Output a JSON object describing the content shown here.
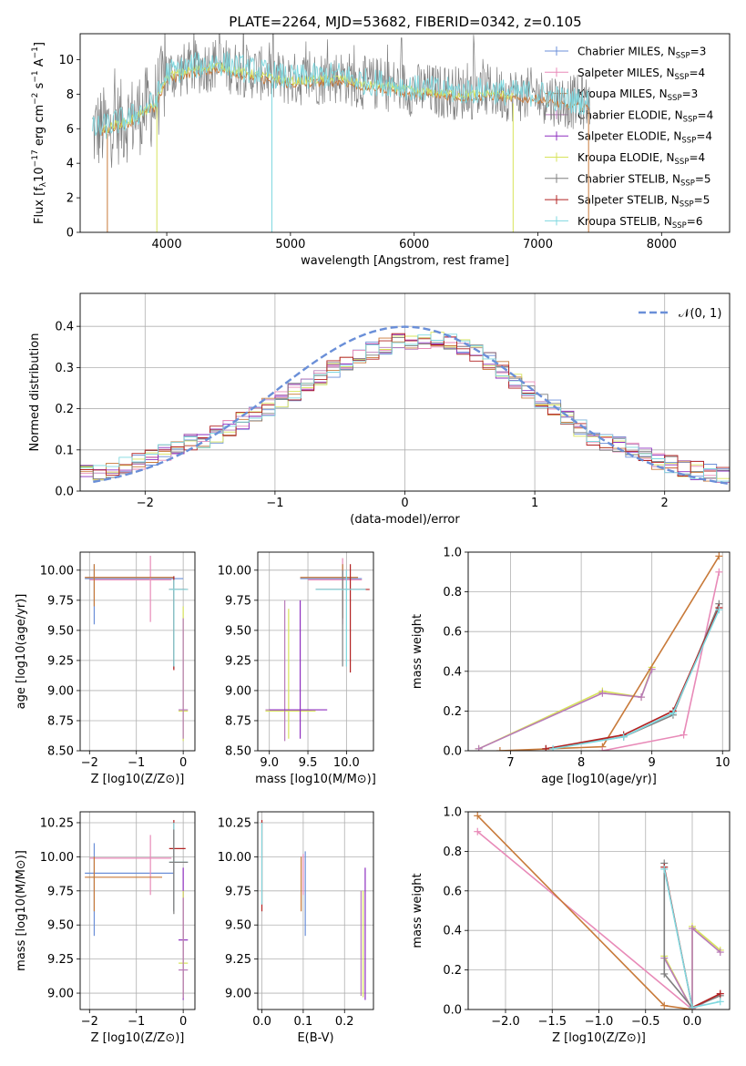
{
  "figure_title": "PLATE=2264, MJD=53682, FIBERID=0342, z=0.105",
  "colors": {
    "Chabrier MILES": "#6b8fd8",
    "Salpeter MILES": "#e88ab8",
    "Kroupa MILES": "#c87a3a",
    "Chabrier ELODIE": "#b87ab8",
    "Salpeter ELODIE": "#8e2fbf",
    "Kroupa ELODIE": "#d7e35a",
    "Chabrier STELIB": "#7f7f7f",
    "Salpeter STELIB": "#b22222",
    "Kroupa STELIB": "#7fd8df",
    "normal": "#6a8fd8"
  },
  "spectrum_legend": [
    "Chabrier MILES, N_SSP=3",
    "Salpeter MILES, N_SSP=4",
    "Kroupa MILES, N_SSP=3",
    "Chabrier ELODIE, N_SSP=4",
    "Salpeter ELODIE, N_SSP=4",
    "Kroupa ELODIE, N_SSP=4",
    "Chabrier STELIB, N_SSP=5",
    "Salpeter STELIB, N_SSP=5",
    "Kroupa STELIB, N_SSP=6"
  ],
  "chart_data": [
    {
      "id": "spectrum",
      "type": "line",
      "xlabel": "wavelength [Angstrom, rest frame]",
      "ylabel": "Flux [f_λ 10^-17 erg cm^-2 s^-1 A^-1]",
      "xlim": [
        3300,
        8550
      ],
      "ylim": [
        0,
        11.5
      ],
      "xticks": [
        4000,
        5000,
        6000,
        7000,
        8000
      ],
      "yticks": [
        0,
        2,
        4,
        6,
        8,
        10
      ],
      "continuum": {
        "x": [
          3400,
          3500,
          3600,
          3700,
          3800,
          3900,
          4000,
          4100,
          4200,
          4300,
          4400,
          4600,
          4800,
          5000,
          5200,
          5400,
          5600,
          5800,
          6000,
          6200,
          6400,
          6600,
          6800,
          7000,
          7200,
          7400
        ],
        "y": [
          6.1,
          6.3,
          6.6,
          6.8,
          7.3,
          7.7,
          9.5,
          9.7,
          9.9,
          10.0,
          10.2,
          9.8,
          9.5,
          9.2,
          9.3,
          9.4,
          9.0,
          8.9,
          8.6,
          8.5,
          8.4,
          8.5,
          8.3,
          8.3,
          7.9,
          7.8
        ]
      }
    },
    {
      "id": "residuals",
      "type": "line",
      "xlabel": "(data-model)/error",
      "ylabel": "Normed distribution",
      "xlim": [
        -2.5,
        2.5
      ],
      "ylim": [
        0,
        0.48
      ],
      "xticks": [
        -2,
        -1,
        0,
        1,
        2
      ],
      "yticks": [
        0.0,
        0.1,
        0.2,
        0.3,
        0.4
      ],
      "legend": "𝒩(0, 1)",
      "legend_position": "top-right",
      "grid": true
    },
    {
      "id": "age_vs_Z",
      "type": "scatter",
      "xlabel": "Z [log10(Z/Z⊙)]",
      "ylabel": "age  [log10(age/yr)]",
      "xlim": [
        -2.2,
        0.25
      ],
      "ylim": [
        8.5,
        10.15
      ],
      "xticks": [
        -2,
        -1,
        0
      ],
      "yticks": [
        8.5,
        8.75,
        9.0,
        9.25,
        9.5,
        9.75,
        10.0
      ],
      "points": [
        {
          "model": "Chabrier MILES",
          "x": -1.9,
          "xlo": -2.1,
          "xhi": 0.0,
          "y": 9.93,
          "ylo": 9.55,
          "yhi": 10.05
        },
        {
          "model": "Salpeter MILES",
          "x": -0.7,
          "xlo": -2.0,
          "xhi": -0.25,
          "y": 9.92,
          "ylo": 9.57,
          "yhi": 10.12
        },
        {
          "model": "Kroupa MILES",
          "x": -1.9,
          "xlo": -2.1,
          "xhi": -0.2,
          "y": 9.94,
          "ylo": 9.7,
          "yhi": 10.05
        },
        {
          "model": "Chabrier STELIB",
          "x": -0.2,
          "xlo": -0.3,
          "xhi": 0.05,
          "y": 9.84,
          "ylo": 9.18,
          "yhi": 9.95
        },
        {
          "model": "Salpeter STELIB",
          "x": -0.2,
          "xlo": -0.3,
          "xhi": 0.1,
          "y": 9.84,
          "ylo": 9.17,
          "yhi": 9.95
        },
        {
          "model": "Kroupa STELIB",
          "x": -0.2,
          "xlo": -0.3,
          "xhi": 0.1,
          "y": 9.84,
          "ylo": 9.2,
          "yhi": 9.92
        },
        {
          "model": "Kroupa ELODIE",
          "x": 0.0,
          "xlo": -0.1,
          "xhi": 0.1,
          "y": 8.83,
          "ylo": 8.58,
          "yhi": 9.7
        },
        {
          "model": "Chabrier ELODIE",
          "x": 0.0,
          "xlo": -0.1,
          "xhi": 0.1,
          "y": 8.84,
          "ylo": 8.6,
          "yhi": 9.6
        }
      ]
    },
    {
      "id": "age_vs_mass",
      "type": "scatter",
      "xlabel": "mass [log10(M/M⊙)]",
      "ylabel": "",
      "xlim": [
        8.85,
        10.35
      ],
      "ylim": [
        8.5,
        10.15
      ],
      "xticks": [
        9.0,
        9.5,
        10.0
      ],
      "yticks": [
        8.5,
        8.75,
        9.0,
        9.25,
        9.5,
        9.75,
        10.0
      ],
      "points": [
        {
          "model": "Chabrier MILES",
          "x": 9.95,
          "xlo": 9.4,
          "xhi": 10.2,
          "y": 9.93,
          "ylo": 9.6,
          "yhi": 10.05
        },
        {
          "model": "Salpeter MILES",
          "x": 9.95,
          "xlo": 9.5,
          "xhi": 10.2,
          "y": 9.92,
          "ylo": 9.55,
          "yhi": 10.1
        },
        {
          "model": "Kroupa MILES",
          "x": 9.95,
          "xlo": 9.4,
          "xhi": 10.15,
          "y": 9.94,
          "ylo": 9.6,
          "yhi": 10.05
        },
        {
          "model": "Chabrier STELIB",
          "x": 9.95,
          "xlo": 9.6,
          "xhi": 10.25,
          "y": 9.84,
          "ylo": 9.2,
          "yhi": 10.0
        },
        {
          "model": "Salpeter STELIB",
          "x": 10.05,
          "xlo": 9.6,
          "xhi": 10.3,
          "y": 9.84,
          "ylo": 9.15,
          "yhi": 10.05
        },
        {
          "model": "Kroupa STELIB",
          "x": 10.0,
          "xlo": 9.6,
          "xhi": 10.25,
          "y": 9.84,
          "ylo": 9.2,
          "yhi": 10.0
        },
        {
          "model": "Kroupa ELODIE",
          "x": 9.25,
          "xlo": 8.95,
          "xhi": 9.6,
          "y": 8.83,
          "ylo": 8.6,
          "yhi": 9.68
        },
        {
          "model": "Chabrier ELODIE",
          "x": 9.2,
          "xlo": 8.95,
          "xhi": 9.55,
          "y": 8.84,
          "ylo": 8.58,
          "yhi": 9.75
        },
        {
          "model": "Salpeter ELODIE",
          "x": 9.4,
          "xlo": 9.0,
          "xhi": 9.75,
          "y": 8.84,
          "ylo": 8.6,
          "yhi": 9.75
        }
      ]
    },
    {
      "id": "weight_vs_age",
      "type": "line",
      "xlabel": "age  [log10(age/yr)]",
      "ylabel": "mass weight",
      "xlim": [
        6.4,
        10.1
      ],
      "ylim": [
        0,
        1.0
      ],
      "xticks": [
        7,
        8,
        9,
        10
      ],
      "yticks": [
        0.0,
        0.2,
        0.4,
        0.6,
        0.8,
        1.0
      ],
      "grid": true,
      "series": [
        {
          "model": "Kroupa ELODIE",
          "x": [
            6.55,
            8.3,
            8.85,
            9.0
          ],
          "y": [
            0.01,
            0.3,
            0.27,
            0.42
          ]
        },
        {
          "model": "Chabrier ELODIE",
          "x": [
            6.55,
            8.3,
            8.85,
            9.0
          ],
          "y": [
            0.01,
            0.29,
            0.27,
            0.41
          ]
        },
        {
          "model": "Kroupa MILES",
          "x": [
            6.85,
            8.3,
            9.95
          ],
          "y": [
            0.0,
            0.02,
            0.98
          ]
        },
        {
          "model": "Salpeter MILES",
          "x": [
            8.3,
            9.45,
            9.95
          ],
          "y": [
            0.0,
            0.08,
            0.9
          ]
        },
        {
          "model": "Chabrier STELIB",
          "x": [
            7.5,
            8.6,
            9.3,
            9.95
          ],
          "y": [
            0.01,
            0.07,
            0.18,
            0.74
          ]
        },
        {
          "model": "Salpeter STELIB",
          "x": [
            7.5,
            8.6,
            9.3,
            9.95
          ],
          "y": [
            0.01,
            0.08,
            0.2,
            0.72
          ]
        },
        {
          "model": "Kroupa STELIB",
          "x": [
            7.6,
            8.6,
            9.3,
            9.95
          ],
          "y": [
            0.01,
            0.07,
            0.19,
            0.71
          ]
        }
      ]
    },
    {
      "id": "mass_vs_Z",
      "type": "scatter",
      "xlabel": "Z [log10(Z/Z⊙)]",
      "ylabel": "mass [log10(M/M⊙)]",
      "xlim": [
        -2.2,
        0.25
      ],
      "ylim": [
        8.88,
        10.33
      ],
      "xticks": [
        -2,
        -1,
        0
      ],
      "yticks": [
        9.0,
        9.25,
        9.5,
        9.75,
        10.0,
        10.25
      ],
      "points": [
        {
          "model": "Chabrier MILES",
          "x": -1.9,
          "xlo": -2.1,
          "xhi": -0.2,
          "y": 9.88,
          "ylo": 9.42,
          "yhi": 10.1
        },
        {
          "model": "Salpeter MILES",
          "x": -0.7,
          "xlo": -2.0,
          "xhi": -0.25,
          "y": 9.99,
          "ylo": 9.72,
          "yhi": 10.16
        },
        {
          "model": "Kroupa MILES",
          "x": -1.9,
          "xlo": -2.1,
          "xhi": -0.45,
          "y": 9.85,
          "ylo": 9.6,
          "yhi": 10.0
        },
        {
          "model": "Salpeter STELIB",
          "x": -0.2,
          "xlo": -0.3,
          "xhi": 0.05,
          "y": 10.06,
          "ylo": 9.6,
          "yhi": 10.27
        },
        {
          "model": "Kroupa STELIB",
          "x": -0.2,
          "xlo": -0.3,
          "xhi": 0.1,
          "y": 9.96,
          "ylo": 9.6,
          "yhi": 10.25
        },
        {
          "model": "Chabrier STELIB",
          "x": -0.2,
          "xlo": -0.3,
          "xhi": 0.1,
          "y": 9.96,
          "ylo": 9.58,
          "yhi": 10.2
        },
        {
          "model": "Salpeter ELODIE",
          "x": 0.0,
          "xlo": -0.1,
          "xhi": 0.1,
          "y": 9.39,
          "ylo": 8.95,
          "yhi": 9.92
        },
        {
          "model": "Kroupa ELODIE",
          "x": 0.0,
          "xlo": -0.1,
          "xhi": 0.1,
          "y": 9.22,
          "ylo": 8.97,
          "yhi": 9.75
        },
        {
          "model": "Chabrier ELODIE",
          "x": 0.0,
          "xlo": -0.1,
          "xhi": 0.1,
          "y": 9.17,
          "ylo": 8.96,
          "yhi": 9.7
        }
      ]
    },
    {
      "id": "mass_vs_EBV",
      "type": "scatter",
      "xlabel": "E(B-V)",
      "ylabel": "",
      "xlim": [
        -0.01,
        0.27
      ],
      "ylim": [
        8.88,
        10.33
      ],
      "xticks": [
        0.0,
        0.1,
        0.2
      ],
      "yticks": [
        9.0,
        9.25,
        9.5,
        9.75,
        10.0,
        10.25
      ],
      "points": [
        {
          "model": "Salpeter STELIB",
          "x": 0.0,
          "y": 10.06,
          "ylo": 9.6,
          "yhi": 10.27
        },
        {
          "model": "Kroupa STELIB",
          "x": 0.0,
          "y": 9.96,
          "ylo": 9.65,
          "yhi": 10.25
        },
        {
          "model": "Kroupa MILES",
          "x": 0.095,
          "y": 9.85,
          "ylo": 9.6,
          "yhi": 10.0
        },
        {
          "model": "Salpeter MILES",
          "x": 0.1,
          "y": 9.99,
          "ylo": 9.72,
          "yhi": 10.02
        },
        {
          "model": "Chabrier MILES",
          "x": 0.105,
          "y": 9.88,
          "ylo": 9.42,
          "yhi": 10.04
        },
        {
          "model": "Kroupa ELODIE",
          "x": 0.245,
          "y": 9.22,
          "ylo": 8.97,
          "yhi": 9.75
        },
        {
          "model": "Chabrier ELODIE",
          "x": 0.24,
          "y": 9.17,
          "ylo": 8.98,
          "yhi": 9.75
        },
        {
          "model": "Salpeter ELODIE",
          "x": 0.25,
          "y": 9.39,
          "ylo": 8.95,
          "yhi": 9.92
        }
      ]
    },
    {
      "id": "weight_vs_Z",
      "type": "line",
      "xlabel": "Z [log10(Z/Z⊙)]",
      "ylabel": "mass weight",
      "xlim": [
        -2.4,
        0.4
      ],
      "ylim": [
        0,
        1.0
      ],
      "xticks": [
        -2.0,
        -1.5,
        -1.0,
        -0.5,
        0.0
      ],
      "yticks": [
        0.0,
        0.2,
        0.4,
        0.6,
        0.8,
        1.0
      ],
      "grid": true,
      "series": [
        {
          "model": "Kroupa ELODIE",
          "x": [
            -0.3,
            0.0,
            0.0,
            0.3
          ],
          "y": [
            0.27,
            0.0,
            0.42,
            0.3
          ]
        },
        {
          "model": "Chabrier ELODIE",
          "x": [
            -0.3,
            0.0,
            0.0,
            0.3
          ],
          "y": [
            0.26,
            0.0,
            0.41,
            0.29
          ]
        },
        {
          "model": "Salpeter MILES",
          "x": [
            -2.3,
            0.0,
            0.3
          ],
          "y": [
            0.9,
            0.0,
            0.08
          ]
        },
        {
          "model": "Kroupa MILES",
          "x": [
            -2.3,
            -0.3,
            0.0
          ],
          "y": [
            0.98,
            0.02,
            0.0
          ]
        },
        {
          "model": "Chabrier STELIB",
          "x": [
            -0.3,
            -0.3,
            0.0,
            0.3
          ],
          "y": [
            0.74,
            0.18,
            0.01,
            0.07
          ]
        },
        {
          "model": "Salpeter STELIB",
          "x": [
            -0.3,
            0.0,
            0.3
          ],
          "y": [
            0.72,
            0.01,
            0.08
          ]
        },
        {
          "model": "Kroupa STELIB",
          "x": [
            -0.3,
            0.0,
            0.3
          ],
          "y": [
            0.71,
            0.01,
            0.04
          ]
        }
      ]
    }
  ]
}
